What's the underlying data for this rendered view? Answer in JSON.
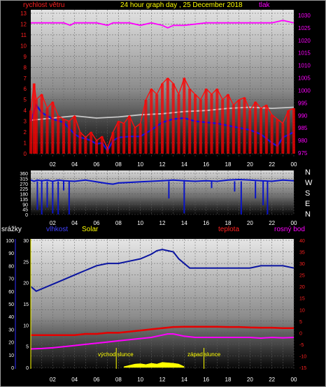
{
  "header": {
    "left_label": "rychlost větru",
    "title": "24 hour graph day , 25 December 2018",
    "right_label": "tlak"
  },
  "colors": {
    "wind": "#ff1010",
    "gust": "#ff0000",
    "avg_wind": "#0a14e6",
    "temp_grey": "#c8c8c8",
    "pressure": "#ff00ff",
    "direction": "#0a14c8",
    "humidity": "#0a14a0",
    "dew": "#ff00ff",
    "temp": "#e60000",
    "solar": "#ffff00",
    "axis_left": "#ff2020",
    "axis_right": "#ff00ff",
    "axis_blue": "#3030ff"
  },
  "time_ticks": [
    "02",
    "04",
    "06",
    "08",
    "10",
    "12",
    "14",
    "16",
    "18",
    "20",
    "22",
    "00"
  ],
  "chart_data": [
    {
      "type": "line",
      "name": "wind-pressure",
      "left_axis": {
        "label": "rychlost větru",
        "ticks": [
          0,
          1,
          2,
          3,
          4,
          5,
          6,
          7,
          8,
          9,
          10,
          11,
          12,
          13
        ]
      },
      "right_axis": {
        "label": "tlak",
        "ticks": [
          975,
          980,
          985,
          990,
          995,
          1000,
          1005,
          1010,
          1015,
          1020,
          1025,
          1030
        ]
      },
      "series": [
        {
          "key": "pressure",
          "axis": "right",
          "x": [
            0,
            3,
            3.6,
            4,
            6,
            7,
            7.5,
            8,
            9,
            10,
            11,
            12,
            12.5,
            13,
            14,
            16,
            18,
            20,
            22,
            23,
            24
          ],
          "y": [
            1027,
            1027,
            1026,
            1027,
            1027,
            1026,
            1027,
            1027,
            1027,
            1026,
            1027,
            1026,
            1025,
            1026,
            1026,
            1027,
            1027,
            1027,
            1027,
            1028,
            1027
          ]
        },
        {
          "key": "temp_grey",
          "axis": "left",
          "x": [
            0,
            2,
            4,
            6,
            8,
            10,
            12,
            14,
            16,
            18,
            20,
            22,
            24
          ],
          "y": [
            3.1,
            3.3,
            3.5,
            3.3,
            3.4,
            3.6,
            3.7,
            3.9,
            4.0,
            4.2,
            4.3,
            4.2,
            4.3
          ]
        },
        {
          "key": "avg_wind",
          "axis": "left",
          "x": [
            0,
            0.5,
            1,
            2,
            3,
            4,
            4.5,
            5,
            5.5,
            6,
            6.5,
            7,
            7.5,
            8,
            9,
            10,
            11,
            12,
            13,
            14,
            15,
            16,
            17,
            18,
            19,
            20,
            21,
            22,
            22.5,
            23,
            24
          ],
          "y": [
            3.0,
            4.5,
            3.8,
            3.2,
            2.9,
            1.8,
            1.5,
            1.4,
            1.2,
            0.9,
            1.0,
            0.3,
            1.2,
            1.5,
            1.6,
            1.6,
            2.2,
            2.9,
            3.2,
            3.3,
            3.0,
            2.9,
            2.8,
            2.6,
            2.4,
            2.2,
            1.8,
            1.0,
            0.7,
            1.5,
            2.0
          ]
        },
        {
          "key": "wind",
          "axis": "left",
          "x": [
            0,
            0.3,
            0.5,
            1,
            1.5,
            2,
            2.5,
            3,
            3.5,
            4,
            4.5,
            5,
            5.5,
            6,
            6.5,
            7,
            7.5,
            8,
            8.5,
            9,
            9.5,
            10,
            10.5,
            11,
            11.5,
            12,
            12.5,
            13,
            13.5,
            14,
            14.5,
            15,
            15.5,
            16,
            16.5,
            17,
            17.5,
            18,
            18.5,
            19,
            19.5,
            20,
            20.5,
            21,
            21.5,
            22,
            22.5,
            23,
            23.5,
            24
          ],
          "y": [
            4,
            6.5,
            5,
            5.5,
            4.2,
            4.8,
            3.5,
            3.2,
            3,
            3.5,
            2,
            1.5,
            2,
            1.2,
            1.6,
            0.5,
            2,
            3,
            2.8,
            3.5,
            2.4,
            2.8,
            5,
            6,
            5.5,
            6.5,
            7,
            6.5,
            5.5,
            7,
            6,
            5.5,
            5,
            6,
            5.5,
            6,
            5,
            5.5,
            4.5,
            5,
            5.2,
            4,
            4.8,
            4.2,
            4.5,
            3.6,
            3.2,
            2.8,
            4,
            4.2
          ]
        }
      ]
    },
    {
      "type": "line",
      "name": "wind-direction",
      "left_axis": {
        "ticks": [
          0,
          45,
          90,
          135,
          180,
          225,
          270,
          315,
          360
        ]
      },
      "right_labels": [
        "N",
        "W",
        "S",
        "E",
        "N"
      ],
      "series": [
        {
          "key": "direction",
          "x": [
            0,
            0.3,
            0.6,
            1,
            1.5,
            2,
            2.5,
            3,
            4,
            5,
            6,
            7,
            7.5,
            8,
            9,
            10,
            11,
            12,
            13,
            14,
            15,
            16,
            17,
            18,
            19,
            20,
            21,
            22,
            23,
            24
          ],
          "y": [
            300,
            290,
            300,
            295,
            300,
            290,
            300,
            295,
            290,
            300,
            285,
            270,
            265,
            275,
            280,
            285,
            290,
            295,
            300,
            295,
            290,
            295,
            290,
            300,
            305,
            300,
            295,
            290,
            300,
            295
          ]
        }
      ],
      "dips": [
        {
          "x": 0.6,
          "y": 40
        },
        {
          "x": 1.0,
          "y": 0
        },
        {
          "x": 1.5,
          "y": 60
        },
        {
          "x": 2.0,
          "y": 10
        },
        {
          "x": 2.5,
          "y": 0
        },
        {
          "x": 3.0,
          "y": 210
        },
        {
          "x": 3.5,
          "y": 0
        },
        {
          "x": 12.6,
          "y": 140
        },
        {
          "x": 14.0,
          "y": 10
        },
        {
          "x": 16.5,
          "y": 230
        },
        {
          "x": 18.6,
          "y": 200
        },
        {
          "x": 19.2,
          "y": 0
        },
        {
          "x": 20.5,
          "y": 140
        },
        {
          "x": 21.2,
          "y": 80
        },
        {
          "x": 21.6,
          "y": 0
        }
      ]
    },
    {
      "type": "line",
      "name": "temperature-humidity",
      "labels": {
        "rain": "srážky",
        "humidity": "vlhkost",
        "solar": "Solar",
        "temp": "teplota",
        "dew": "rosný bod"
      },
      "rain_axis": {
        "ticks": [
          0,
          10,
          20,
          30,
          40,
          50,
          60,
          70,
          80,
          90,
          100
        ]
      },
      "hum_axis": {
        "ticks": [
          0,
          5,
          10,
          15,
          20,
          25,
          30
        ]
      },
      "temp_axis": {
        "ticks": [
          -15,
          -10,
          -5,
          0,
          5,
          10,
          15,
          20,
          25,
          30,
          35,
          40
        ]
      },
      "annotations": {
        "sunrise": "východ slunce",
        "sunset": "západ slunce",
        "sunrise_x": 7.8,
        "sunset_x": 15.8
      },
      "series": [
        {
          "key": "humidity",
          "axis": "temp",
          "x": [
            0,
            0.5,
            1,
            2,
            3,
            4,
            5,
            6,
            7,
            8,
            9,
            10,
            11,
            11.5,
            12,
            12.5,
            13,
            13.5,
            14,
            14.5,
            15,
            16,
            17,
            18,
            19,
            20,
            21,
            22,
            23,
            24
          ],
          "y": [
            20,
            18,
            19,
            21,
            23,
            25,
            27,
            29,
            30,
            30,
            31,
            32,
            34,
            35.5,
            36,
            35.5,
            35,
            32,
            30,
            28,
            28,
            28,
            28,
            28,
            28,
            28,
            29,
            29,
            29,
            28
          ]
        },
        {
          "key": "temp",
          "axis": "temp",
          "x": [
            0,
            1,
            2,
            3,
            4,
            5,
            6,
            7,
            8,
            9,
            10,
            11,
            12,
            13,
            14,
            15,
            16,
            17,
            18,
            19,
            20,
            21,
            22,
            23,
            24
          ],
          "y": [
            -1,
            -1,
            -1,
            -1,
            -1,
            -0.5,
            -0.5,
            0,
            0,
            0.5,
            1,
            1.5,
            2,
            2.5,
            2.6,
            2.6,
            2.6,
            2.6,
            2.5,
            2.5,
            2.3,
            2.2,
            2.2,
            2.0,
            2.0
          ]
        },
        {
          "key": "dew",
          "axis": "temp",
          "x": [
            0,
            1,
            2,
            3,
            4,
            5,
            6,
            7,
            8,
            9,
            10,
            11,
            12,
            12.5,
            13,
            14,
            15,
            16,
            17,
            18,
            19,
            20,
            21,
            22,
            23,
            24
          ],
          "y": [
            -7,
            -6.8,
            -6.5,
            -6,
            -5.5,
            -5,
            -4.5,
            -4,
            -3.5,
            -3,
            -2.5,
            -2,
            -1,
            -0.5,
            -0.5,
            -1.5,
            -2,
            -2,
            -2,
            -2,
            -2,
            -2,
            -2.3,
            -2,
            -2.2,
            -2
          ]
        },
        {
          "key": "solar",
          "axis": "hum",
          "x": [
            8.5,
            9,
            9.5,
            10,
            10.5,
            11,
            11.5,
            12,
            12.5,
            13,
            13.5,
            14
          ],
          "y": [
            0.2,
            0.5,
            0.8,
            0.9,
            0.7,
            1.0,
            0.8,
            1.2,
            1.1,
            1.0,
            0.8,
            0.2
          ]
        }
      ]
    }
  ]
}
